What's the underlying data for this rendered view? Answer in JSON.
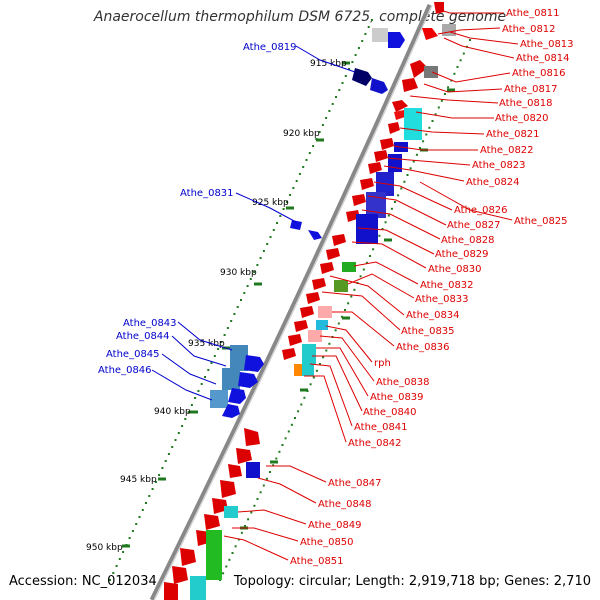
{
  "header": {
    "title": "Anaerocellum thermophilum DSM 6725, complete genome"
  },
  "footer": {
    "accession": "Accession: NC_012034",
    "topology": "Topology: circular; Length: 2,919,718 bp; Genes: 2,710"
  },
  "colors": {
    "forward_label": "#0000cc",
    "reverse_label": "#dd0000",
    "backbone": "#888888",
    "tick": "#1f7a1f"
  },
  "ticks": [
    "915 kbp",
    "920 kbp",
    "925 kbp",
    "930 kbp",
    "935 kbp",
    "940 kbp",
    "945 kbp",
    "950 kbp"
  ],
  "left_labels": [
    "Athe_0819",
    "Athe_0831",
    "Athe_0843",
    "Athe_0844",
    "Athe_0845",
    "Athe_0846"
  ],
  "right_labels": [
    "Athe_0811",
    "Athe_0812",
    "Athe_0813",
    "Athe_0814",
    "Athe_0816",
    "Athe_0817",
    "Athe_0818",
    "Athe_0820",
    "Athe_0821",
    "Athe_0822",
    "Athe_0823",
    "Athe_0824",
    "Athe_0826",
    "Athe_0825",
    "Athe_0827",
    "Athe_0828",
    "Athe_0829",
    "Athe_0830",
    "Athe_0832",
    "Athe_0833",
    "Athe_0834",
    "Athe_0835",
    "Athe_0836",
    "rph",
    "Athe_0838",
    "Athe_0839",
    "Athe_0840",
    "Athe_0841",
    "Athe_0842",
    "Athe_0847",
    "Athe_0848",
    "Athe_0849",
    "Athe_0850",
    "Athe_0851"
  ]
}
